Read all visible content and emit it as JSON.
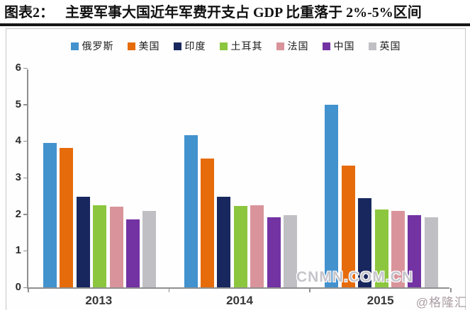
{
  "figure": {
    "label": "图表2：",
    "title": "主要军事大国近年军费开支占 GDP 比重落于 2%-5%区间"
  },
  "watermarks": {
    "site": "CNMN.COM.CN",
    "source": "@格隆汇"
  },
  "chart_data": {
    "type": "bar",
    "title": "主要军事大国近年军费开支占 GDP 比重落于 2%-5%区间",
    "categories": [
      "2013",
      "2014",
      "2015"
    ],
    "series": [
      {
        "name": "俄罗斯",
        "color": "#4292CE",
        "values": [
          3.95,
          4.17,
          5.0
        ]
      },
      {
        "name": "美国",
        "color": "#E66B0B",
        "values": [
          3.82,
          3.52,
          3.33
        ]
      },
      {
        "name": "印度",
        "color": "#18275E",
        "values": [
          2.48,
          2.48,
          2.43
        ]
      },
      {
        "name": "土耳其",
        "color": "#8CC63F",
        "values": [
          2.25,
          2.22,
          2.13
        ]
      },
      {
        "name": "法国",
        "color": "#D9949B",
        "values": [
          2.2,
          2.24,
          2.09
        ]
      },
      {
        "name": "中国",
        "color": "#7333A3",
        "values": [
          1.86,
          1.92,
          1.98
        ]
      },
      {
        "name": "英国",
        "color": "#C0BFC4",
        "values": [
          2.09,
          1.98,
          1.92
        ]
      }
    ],
    "xlabel": "",
    "ylabel": "",
    "ylim": [
      0,
      6
    ],
    "yticks": [
      0,
      1,
      2,
      3,
      4,
      5,
      6
    ],
    "grid": false,
    "legend_position": "top"
  }
}
